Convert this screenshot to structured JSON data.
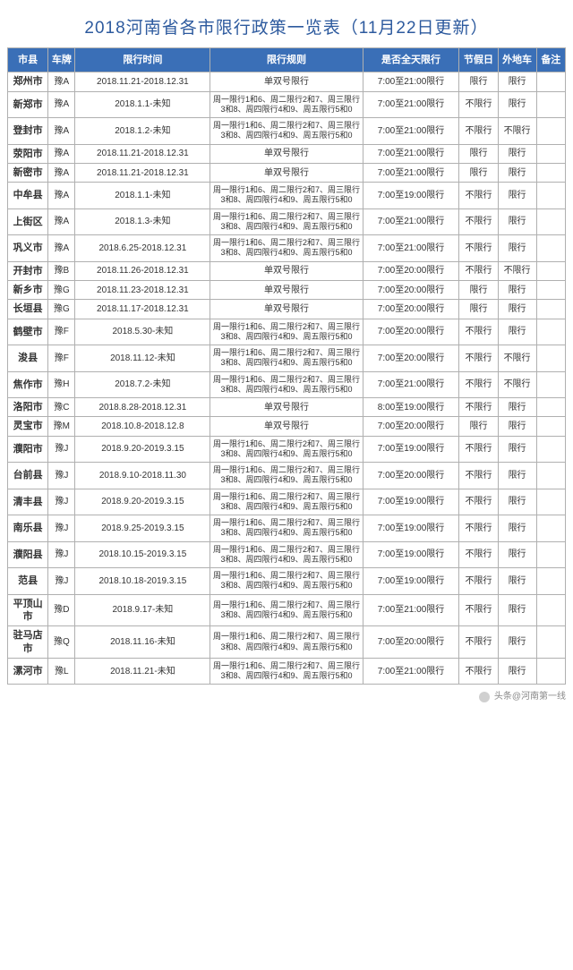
{
  "title": "2018河南省各市限行政策一览表（11月22日更新）",
  "columns": [
    "市县",
    "车牌",
    "限行时间",
    "限行规则",
    "是否全天限行",
    "节假日",
    "外地车",
    "备注"
  ],
  "ruleA": "周一限行1和6、周二限行2和7、周三限行3和8、周四限行4和9、周五限行5和0",
  "ruleB": "单双号限行",
  "rows": [
    {
      "city": "郑州市",
      "plate": "豫A",
      "time": "2018.11.21-2018.12.31",
      "rule": "B",
      "allday": "7:00至21:00限行",
      "holiday": "限行",
      "out": "限行",
      "note": ""
    },
    {
      "city": "新郑市",
      "plate": "豫A",
      "time": "2018.1.1-未知",
      "rule": "A",
      "allday": "7:00至21:00限行",
      "holiday": "不限行",
      "out": "限行",
      "note": ""
    },
    {
      "city": "登封市",
      "plate": "豫A",
      "time": "2018.1.2-未知",
      "rule": "A",
      "allday": "7:00至21:00限行",
      "holiday": "不限行",
      "out": "不限行",
      "note": ""
    },
    {
      "city": "荥阳市",
      "plate": "豫A",
      "time": "2018.11.21-2018.12.31",
      "rule": "B",
      "allday": "7:00至21:00限行",
      "holiday": "限行",
      "out": "限行",
      "note": ""
    },
    {
      "city": "新密市",
      "plate": "豫A",
      "time": "2018.11.21-2018.12.31",
      "rule": "B",
      "allday": "7:00至21:00限行",
      "holiday": "限行",
      "out": "限行",
      "note": ""
    },
    {
      "city": "中牟县",
      "plate": "豫A",
      "time": "2018.1.1-未知",
      "rule": "A",
      "allday": "7:00至19:00限行",
      "holiday": "不限行",
      "out": "限行",
      "note": ""
    },
    {
      "city": "上街区",
      "plate": "豫A",
      "time": "2018.1.3-未知",
      "rule": "A",
      "allday": "7:00至21:00限行",
      "holiday": "不限行",
      "out": "限行",
      "note": ""
    },
    {
      "city": "巩义市",
      "plate": "豫A",
      "time": "2018.6.25-2018.12.31",
      "rule": "A",
      "allday": "7:00至21:00限行",
      "holiday": "不限行",
      "out": "限行",
      "note": ""
    },
    {
      "city": "开封市",
      "plate": "豫B",
      "time": "2018.11.26-2018.12.31",
      "rule": "B",
      "allday": "7:00至20:00限行",
      "holiday": "不限行",
      "out": "不限行",
      "note": ""
    },
    {
      "city": "新乡市",
      "plate": "豫G",
      "time": "2018.11.23-2018.12.31",
      "rule": "B",
      "allday": "7:00至20:00限行",
      "holiday": "限行",
      "out": "限行",
      "note": ""
    },
    {
      "city": "长垣县",
      "plate": "豫G",
      "time": "2018.11.17-2018.12.31",
      "rule": "B",
      "allday": "7:00至20:00限行",
      "holiday": "限行",
      "out": "限行",
      "note": ""
    },
    {
      "city": "鹤壁市",
      "plate": "豫F",
      "time": "2018.5.30-未知",
      "rule": "A",
      "allday": "7:00至20:00限行",
      "holiday": "不限行",
      "out": "限行",
      "note": ""
    },
    {
      "city": "浚县",
      "plate": "豫F",
      "time": "2018.11.12-未知",
      "rule": "A",
      "allday": "7:00至20:00限行",
      "holiday": "不限行",
      "out": "不限行",
      "note": ""
    },
    {
      "city": "焦作市",
      "plate": "豫H",
      "time": "2018.7.2-未知",
      "rule": "A",
      "allday": "7:00至21:00限行",
      "holiday": "不限行",
      "out": "不限行",
      "note": ""
    },
    {
      "city": "洛阳市",
      "plate": "豫C",
      "time": "2018.8.28-2018.12.31",
      "rule": "B",
      "allday": "8:00至19:00限行",
      "holiday": "不限行",
      "out": "限行",
      "note": ""
    },
    {
      "city": "灵宝市",
      "plate": "豫M",
      "time": "2018.10.8-2018.12.8",
      "rule": "B",
      "allday": "7:00至20:00限行",
      "holiday": "限行",
      "out": "限行",
      "note": ""
    },
    {
      "city": "濮阳市",
      "plate": "豫J",
      "time": "2018.9.20-2019.3.15",
      "rule": "A",
      "allday": "7:00至19:00限行",
      "holiday": "不限行",
      "out": "限行",
      "note": ""
    },
    {
      "city": "台前县",
      "plate": "豫J",
      "time": "2018.9.10-2018.11.30",
      "rule": "A",
      "allday": "7:00至20:00限行",
      "holiday": "不限行",
      "out": "限行",
      "note": ""
    },
    {
      "city": "清丰县",
      "plate": "豫J",
      "time": "2018.9.20-2019.3.15",
      "rule": "A",
      "allday": "7:00至19:00限行",
      "holiday": "不限行",
      "out": "限行",
      "note": ""
    },
    {
      "city": "南乐县",
      "plate": "豫J",
      "time": "2018.9.25-2019.3.15",
      "rule": "A",
      "allday": "7:00至19:00限行",
      "holiday": "不限行",
      "out": "限行",
      "note": ""
    },
    {
      "city": "濮阳县",
      "plate": "豫J",
      "time": "2018.10.15-2019.3.15",
      "rule": "A",
      "allday": "7:00至19:00限行",
      "holiday": "不限行",
      "out": "限行",
      "note": ""
    },
    {
      "city": "范县",
      "plate": "豫J",
      "time": "2018.10.18-2019.3.15",
      "rule": "A",
      "allday": "7:00至19:00限行",
      "holiday": "不限行",
      "out": "限行",
      "note": ""
    },
    {
      "city": "平顶山市",
      "plate": "豫D",
      "time": "2018.9.17-未知",
      "rule": "A",
      "allday": "7:00至21:00限行",
      "holiday": "不限行",
      "out": "限行",
      "note": ""
    },
    {
      "city": "驻马店市",
      "plate": "豫Q",
      "time": "2018.11.16-未知",
      "rule": "A",
      "allday": "7:00至20:00限行",
      "holiday": "不限行",
      "out": "限行",
      "note": ""
    },
    {
      "city": "漯河市",
      "plate": "豫L",
      "time": "2018.11.21-未知",
      "rule": "A",
      "allday": "7:00至21:00限行",
      "holiday": "不限行",
      "out": "限行",
      "note": ""
    }
  ],
  "attribution": "头条@河南第一线"
}
